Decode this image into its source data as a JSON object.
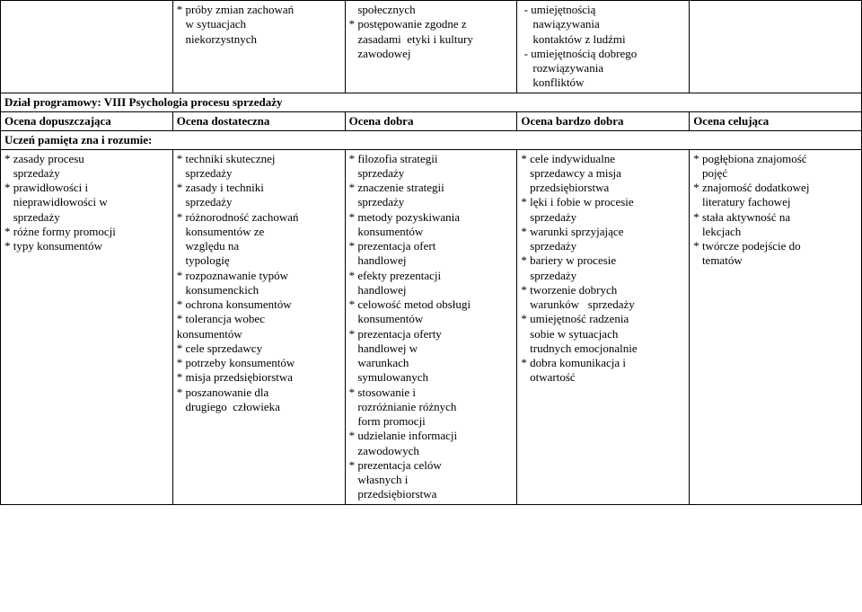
{
  "top_row": {
    "c1": "",
    "c2": "* próby zmian zachowań\n   w sytuacjach\n   niekorzystnych",
    "c3": "   społecznych\n* postępowanie zgodne z\n   zasadami  etyki i kultury\n   zawodowej",
    "c4": " - umiejętnością\n    nawiązywania\n    kontaktów z ludźmi\n - umiejętnością dobrego\n    rozwiązywania\n    konfliktów",
    "c5": ""
  },
  "section_title": "Dział programowy: VIII Psychologia procesu sprzedaży",
  "grade_headers": {
    "c1": "Ocena dopuszczająca",
    "c2": "Ocena dostateczna",
    "c3": "Ocena dobra",
    "c4": "Ocena bardzo dobra",
    "c5": "Ocena celująca"
  },
  "remembers": "Uczeń pamięta zna i rozumie:",
  "body_row": {
    "c1": "* zasady procesu\n   sprzedaży\n* prawidłowości i\n   nieprawidłowości w\n   sprzedaży\n* różne formy promocji\n* typy konsumentów",
    "c2": "* techniki skutecznej\n   sprzedaży\n* zasady i techniki\n   sprzedaży\n* różnorodność zachowań\n   konsumentów ze\n   względu na\n   typologię\n* rozpoznawanie typów\n   konsumenckich\n* ochrona konsumentów\n* tolerancja wobec\nkonsumentów\n* cele sprzedawcy\n* potrzeby konsumentów\n* misja przedsiębiorstwa\n* poszanowanie dla\n   drugiego  człowieka",
    "c3": "* filozofia strategii\n   sprzedaży\n* znaczenie strategii\n   sprzedaży\n* metody pozyskiwania\n   konsumentów\n* prezentacja ofert\n   handlowej\n* efekty prezentacji\n   handlowej\n* celowość metod obsługi\n   konsumentów\n* prezentacja oferty\n   handlowej w\n   warunkach\n   symulowanych\n* stosowanie i\n   rozróżnianie różnych\n   form promocji\n* udzielanie informacji\n   zawodowych\n* prezentacja celów\n   własnych i\n   przedsiębiorstwa",
    "c4": "* cele indywidualne\n   sprzedawcy a misja\n   przedsiębiorstwa\n* lęki i fobie w procesie\n   sprzedaży\n* warunki sprzyjające\n   sprzedaży\n* bariery w procesie\n   sprzedaży\n* tworzenie dobrych\n   warunków   sprzedaży\n* umiejętność radzenia\n   sobie w sytuacjach\n   trudnych emocjonalnie\n* dobra komunikacja i\n   otwartość",
    "c5": "* pogłębiona znajomość\n   pojęć\n* znajomość dodatkowej\n   literatury fachowej\n* stała aktywność na\n   lekcjach\n* twórcze podejście do\n   tematów"
  }
}
